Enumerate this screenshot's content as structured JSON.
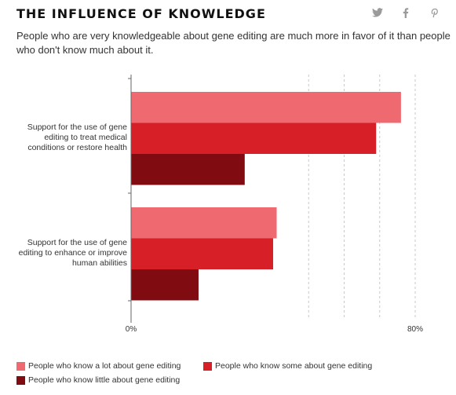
{
  "header": {
    "title": "THE INFLUENCE OF KNOWLEDGE",
    "subtitle": "People who are very knowledgeable about gene editing are much more in favor of it than people who don't know much about it."
  },
  "social": [
    {
      "icon": "twitter-icon",
      "glyph": "🐦"
    },
    {
      "icon": "facebook-icon",
      "glyph": "f"
    },
    {
      "icon": "pinterest-icon",
      "glyph": "𝓅"
    }
  ],
  "chart_data": {
    "type": "bar",
    "orientation": "horizontal",
    "title": "THE INFLUENCE OF KNOWLEDGE",
    "categories": [
      "Support for the use of gene editing to treat medical conditions or restore health",
      "Support for the use of gene editing to enhance or improve human abilities"
    ],
    "category_lines": [
      [
        "Support for the use of gene",
        "editing to treat medical",
        "conditions or restore health"
      ],
      [
        "Support for the use of gene",
        "editing to enhance or improve",
        "human abilities"
      ]
    ],
    "series": [
      {
        "name": "People who know a lot about gene editing",
        "color": "#ef6a70",
        "values": [
          76,
          41
        ]
      },
      {
        "name": "People who know some about gene editing",
        "color": "#d71f27",
        "values": [
          69,
          40
        ]
      },
      {
        "name": "People who know little about gene editing",
        "color": "#800c12",
        "values": [
          32,
          19
        ]
      }
    ],
    "xlim": [
      0,
      80
    ],
    "tick_labels": [
      "0%",
      "80%"
    ],
    "gridlines": [
      50,
      60,
      70,
      80
    ],
    "xlabel": "",
    "ylabel": "",
    "legend_position": "bottom"
  }
}
